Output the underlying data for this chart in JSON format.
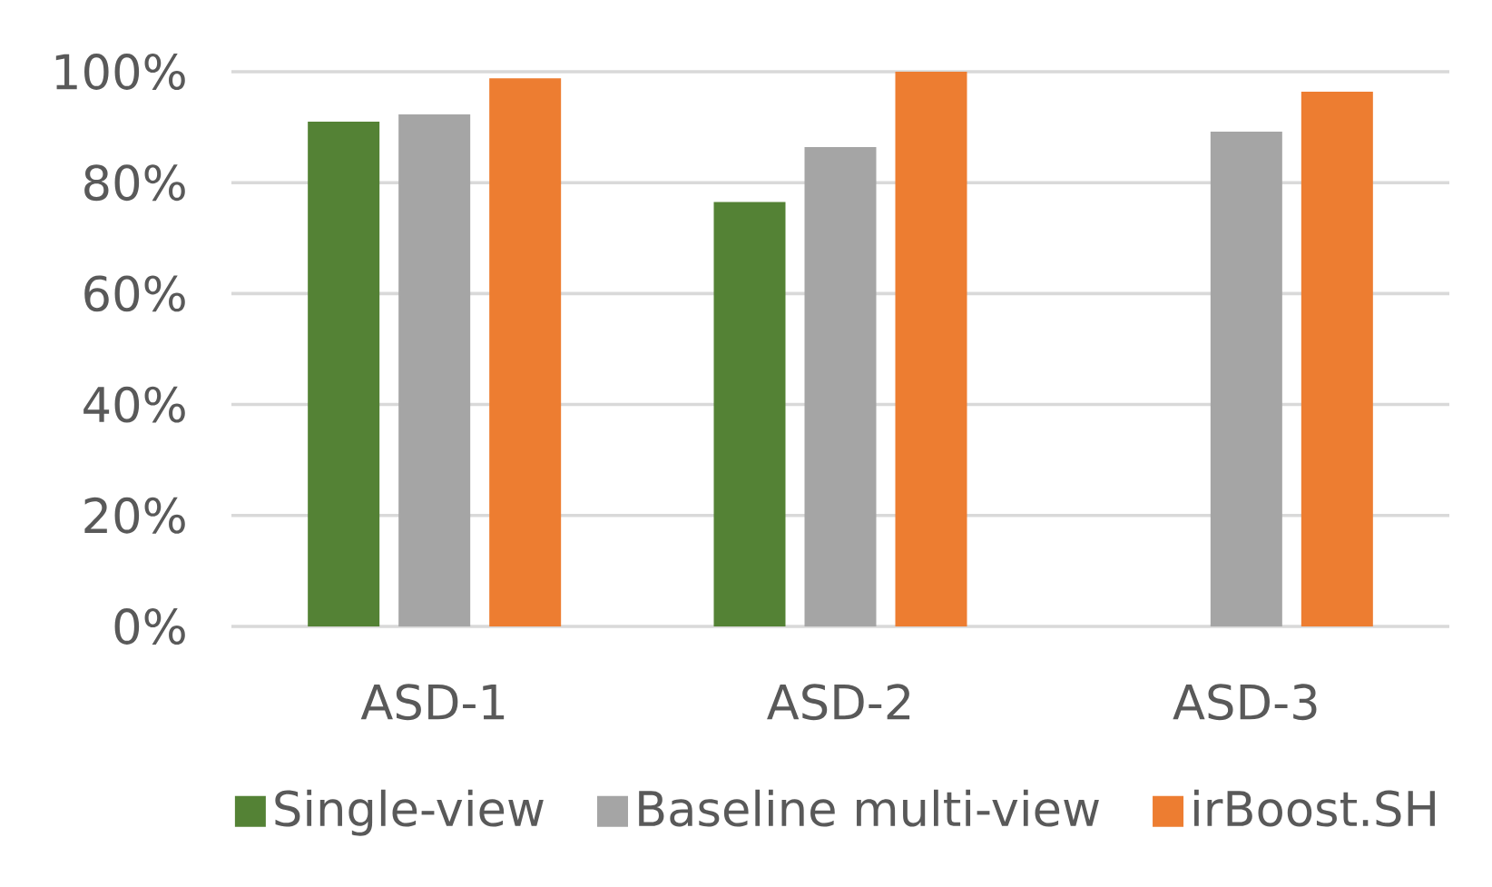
{
  "chart_data": {
    "type": "bar",
    "categories": [
      "ASD-1",
      "ASD-2",
      "ASD-3"
    ],
    "series": [
      {
        "name": "Single-view",
        "color": "#548235",
        "values": [
          91,
          76.5,
          null
        ]
      },
      {
        "name": "Baseline multi-view",
        "color": "#a5a5a5",
        "values": [
          92.3,
          86.4,
          89.2
        ]
      },
      {
        "name": "irBoost.SH",
        "color": "#ed7d31",
        "values": [
          98.8,
          100,
          96.4
        ]
      }
    ],
    "ylim": [
      0,
      100
    ],
    "yticks": [
      {
        "value": 0,
        "label": "0%"
      },
      {
        "value": 20,
        "label": "20%"
      },
      {
        "value": 40,
        "label": "40%"
      },
      {
        "value": 60,
        "label": "60%"
      },
      {
        "value": 80,
        "label": "80%"
      },
      {
        "value": 100,
        "label": "100%"
      }
    ],
    "grid": "y",
    "legend": "bottom"
  }
}
